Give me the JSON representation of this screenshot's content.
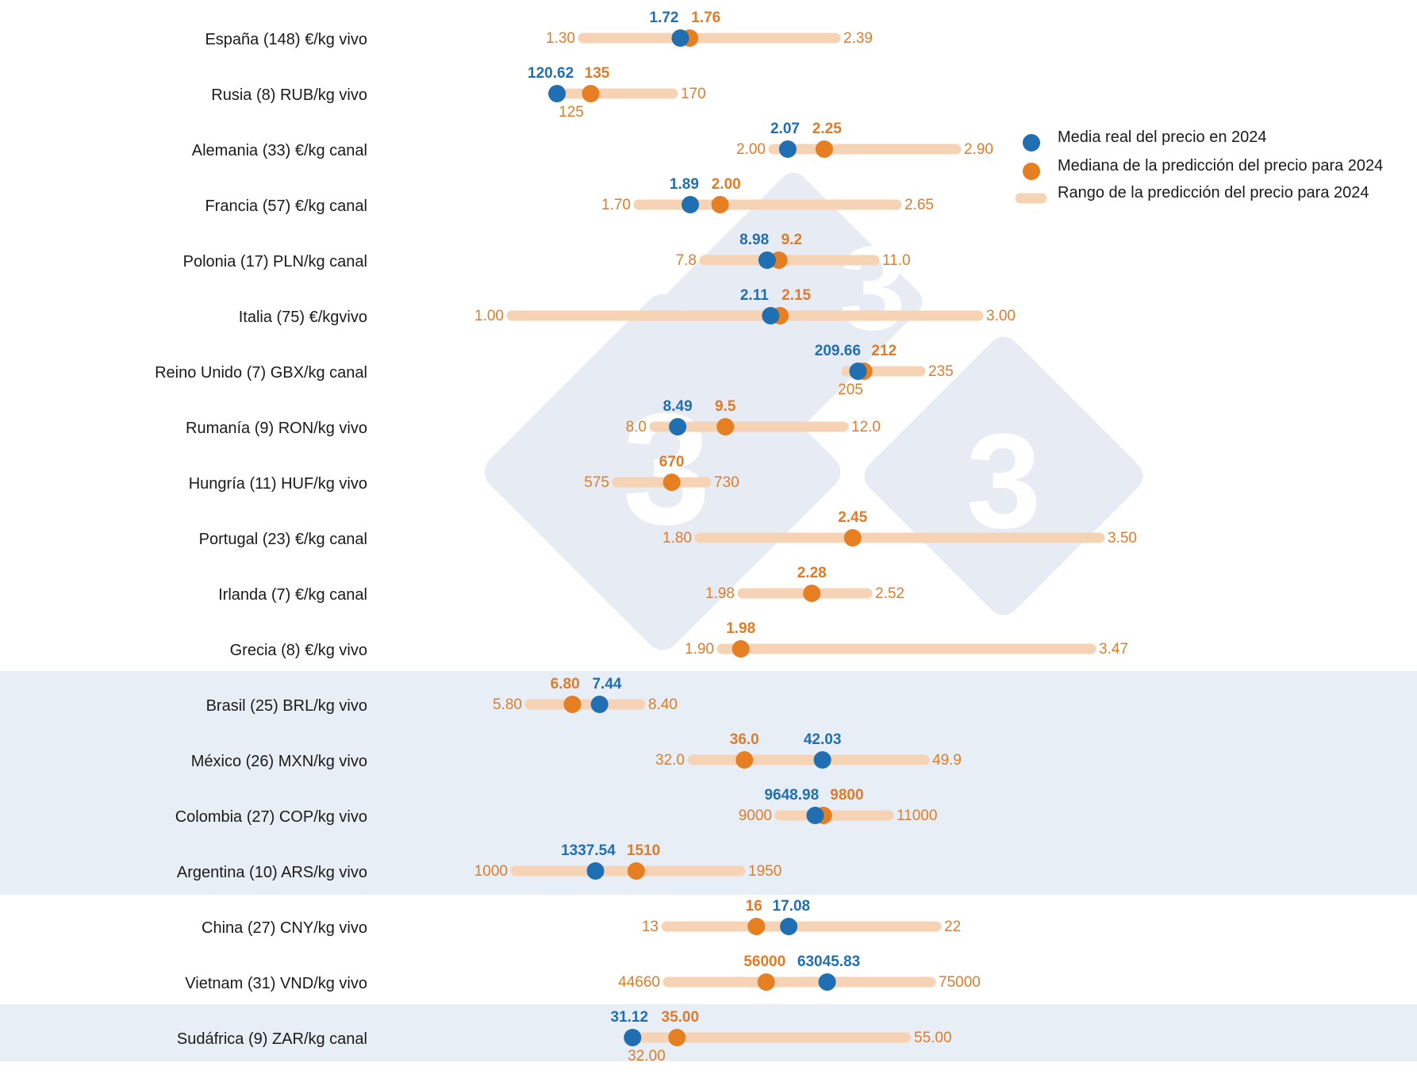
{
  "chart_data": {
    "type": "range-dot",
    "colors": {
      "real": "#1f6fb2",
      "median": "#e67e22",
      "range": "#f7d3b6",
      "band": "#e8eef6",
      "watermark": "#e7ebf3"
    },
    "legend": {
      "position": "top-right",
      "items": [
        {
          "key": "real",
          "label": "Media real del precio en 2024"
        },
        {
          "key": "median",
          "label": "Mediana de la predicción del precio para 2024"
        },
        {
          "key": "range",
          "label": "Rango de la predicción del precio para 2024"
        }
      ]
    },
    "rows": [
      {
        "label": "España (148) €/kg vivo",
        "min": "1.30",
        "max": "2.39",
        "real": "1.72",
        "median": "1.76",
        "band": false
      },
      {
        "label": "Rusia (8) RUB/kg vivo",
        "min": "125",
        "max": "170",
        "real": "120.62",
        "median": "135",
        "band": false
      },
      {
        "label": "Alemania (33) €/kg canal",
        "min": "2.00",
        "max": "2.90",
        "real": "2.07",
        "median": "2.25",
        "band": false
      },
      {
        "label": "Francia (57) €/kg canal",
        "min": "1.70",
        "max": "2.65",
        "real": "1.89",
        "median": "2.00",
        "band": false
      },
      {
        "label": "Polonia (17) PLN/kg canal",
        "min": "7.8",
        "max": "11.0",
        "real": "8.98",
        "median": "9.2",
        "band": false
      },
      {
        "label": "Italia (75) €/kgvivo",
        "min": "1.00",
        "max": "3.00",
        "real": "2.11",
        "median": "2.15",
        "band": false
      },
      {
        "label": "Reino Unido (7) GBX/kg canal",
        "min": "205",
        "max": "235",
        "real": "209.66",
        "median": "212",
        "band": false
      },
      {
        "label": "Rumanía (9) RON/kg vivo",
        "min": "8.0",
        "max": "12.0",
        "real": "8.49",
        "median": "9.5",
        "band": false
      },
      {
        "label": "Hungría (11) HUF/kg vivo",
        "min": "575",
        "max": "730",
        "real": null,
        "median": "670",
        "band": false
      },
      {
        "label": "Portugal (23) €/kg canal",
        "min": "1.80",
        "max": "3.50",
        "real": null,
        "median": "2.45",
        "band": false
      },
      {
        "label": "Irlanda (7) €/kg canal",
        "min": "1.98",
        "max": "2.52",
        "real": null,
        "median": "2.28",
        "band": false
      },
      {
        "label": "Grecia (8) €/kg vivo",
        "min": "1.90",
        "max": "3.47",
        "real": null,
        "median": "1.98",
        "band": false
      },
      {
        "label": "Brasil (25) BRL/kg vivo",
        "min": "5.80",
        "max": "8.40",
        "real": "7.44",
        "median": "6.80",
        "band": true
      },
      {
        "label": "México (26) MXN/kg vivo",
        "min": "32.0",
        "max": "49.9",
        "real": "42.03",
        "median": "36.0",
        "band": true
      },
      {
        "label": "Colombia (27) COP/kg vivo",
        "min": "9000",
        "max": "11000",
        "real": "9648.98",
        "median": "9800",
        "band": true
      },
      {
        "label": "Argentina (10) ARS/kg vivo",
        "min": "1000",
        "max": "1950",
        "real": "1337.54",
        "median": "1510",
        "band": true
      },
      {
        "label": "China (27) CNY/kg vivo",
        "min": "13",
        "max": "22",
        "real": "17.08",
        "median": "16",
        "band": false
      },
      {
        "label": "Vietnam (31) VND/kg vivo",
        "min": "44660",
        "max": "75000",
        "real": "63045.83",
        "median": "56000",
        "band": false
      },
      {
        "label": "Sudáfrica (9) ZAR/kg canal",
        "min": "32.00",
        "max": "55.00",
        "real": "31.12",
        "median": "35.00",
        "band": true
      }
    ]
  }
}
